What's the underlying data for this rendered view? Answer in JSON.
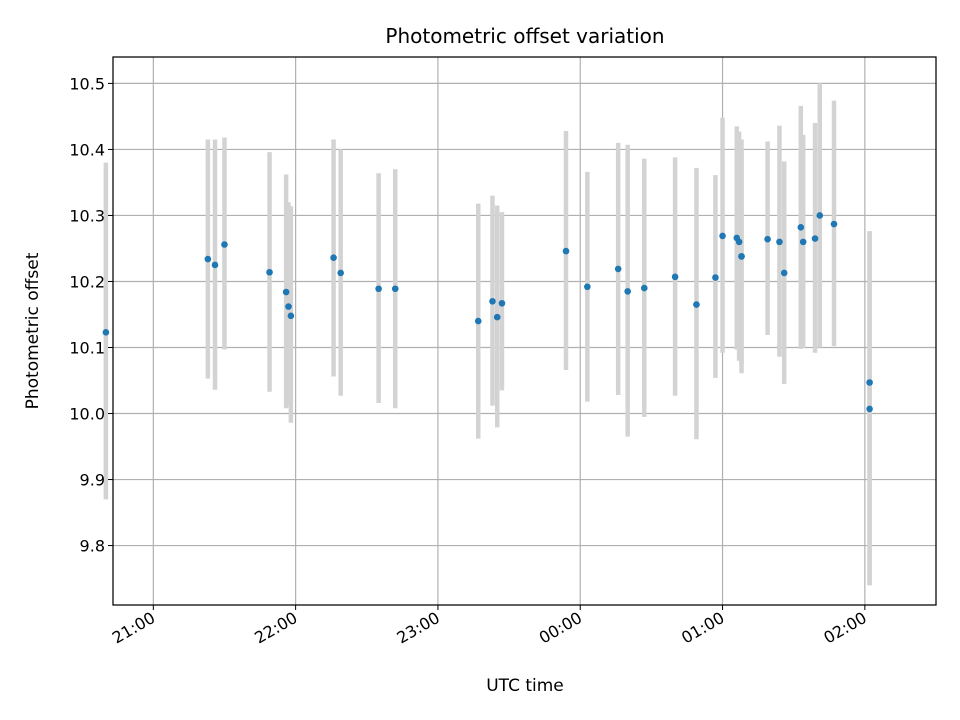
{
  "chart_data": {
    "type": "scatter",
    "title": "Photometric offset variation",
    "xlabel": "UTC time",
    "ylabel": "Photometric offset",
    "grid": true,
    "legend": "none",
    "xlim": [
      "20:43",
      "02:30"
    ],
    "ylim": [
      9.71,
      10.54
    ],
    "x_ticks": [
      "21:00",
      "22:00",
      "23:00",
      "00:00",
      "01:00",
      "02:00"
    ],
    "y_ticks": [
      "9.8",
      "9.9",
      "10.0",
      "10.1",
      "10.2",
      "10.3",
      "10.4",
      "10.5"
    ],
    "colors": {
      "point": "#1f77b4",
      "errorbar": "#d3d3d3"
    },
    "points": [
      {
        "t": "20:40",
        "y": 10.123,
        "lo": 9.87,
        "hi": 10.38
      },
      {
        "t": "21:23",
        "y": 10.234,
        "lo": 10.053,
        "hi": 10.415
      },
      {
        "t": "21:26",
        "y": 10.225,
        "lo": 10.036,
        "hi": 10.415
      },
      {
        "t": "21:30",
        "y": 10.256,
        "lo": 10.097,
        "hi": 10.418
      },
      {
        "t": "21:49",
        "y": 10.214,
        "lo": 10.033,
        "hi": 10.396
      },
      {
        "t": "21:56",
        "y": 10.184,
        "lo": 10.008,
        "hi": 10.362
      },
      {
        "t": "21:57",
        "y": 10.162,
        "lo": 10.012,
        "hi": 10.32
      },
      {
        "t": "21:58",
        "y": 10.148,
        "lo": 9.986,
        "hi": 10.314
      },
      {
        "t": "22:16",
        "y": 10.236,
        "lo": 10.056,
        "hi": 10.415
      },
      {
        "t": "22:19",
        "y": 10.213,
        "lo": 10.027,
        "hi": 10.4
      },
      {
        "t": "22:35",
        "y": 10.189,
        "lo": 10.016,
        "hi": 10.364
      },
      {
        "t": "22:42",
        "y": 10.189,
        "lo": 10.008,
        "hi": 10.37
      },
      {
        "t": "23:17",
        "y": 10.14,
        "lo": 9.962,
        "hi": 10.318
      },
      {
        "t": "23:23",
        "y": 10.17,
        "lo": 10.012,
        "hi": 10.33
      },
      {
        "t": "23:25",
        "y": 10.146,
        "lo": 9.979,
        "hi": 10.315
      },
      {
        "t": "23:27",
        "y": 10.167,
        "lo": 10.035,
        "hi": 10.305
      },
      {
        "t": "23:54",
        "y": 10.246,
        "lo": 10.066,
        "hi": 10.428
      },
      {
        "t": "00:03",
        "y": 10.192,
        "lo": 10.018,
        "hi": 10.366
      },
      {
        "t": "00:16",
        "y": 10.219,
        "lo": 10.028,
        "hi": 10.41
      },
      {
        "t": "00:20",
        "y": 10.185,
        "lo": 9.965,
        "hi": 10.407
      },
      {
        "t": "00:27",
        "y": 10.19,
        "lo": 9.995,
        "hi": 10.386
      },
      {
        "t": "00:40",
        "y": 10.207,
        "lo": 10.027,
        "hi": 10.388
      },
      {
        "t": "00:49",
        "y": 10.165,
        "lo": 9.961,
        "hi": 10.372
      },
      {
        "t": "00:57",
        "y": 10.206,
        "lo": 10.054,
        "hi": 10.361
      },
      {
        "t": "01:00",
        "y": 10.269,
        "lo": 10.092,
        "hi": 10.448
      },
      {
        "t": "01:06",
        "y": 10.266,
        "lo": 10.097,
        "hi": 10.435
      },
      {
        "t": "01:07",
        "y": 10.26,
        "lo": 10.08,
        "hi": 10.427
      },
      {
        "t": "01:08",
        "y": 10.238,
        "lo": 10.061,
        "hi": 10.415
      },
      {
        "t": "01:08",
        "y": 10.238,
        "lo": 10.075,
        "hi": 10.397
      },
      {
        "t": "01:19",
        "y": 10.264,
        "lo": 10.119,
        "hi": 10.412
      },
      {
        "t": "01:24",
        "y": 10.26,
        "lo": 10.086,
        "hi": 10.436
      },
      {
        "t": "01:26",
        "y": 10.213,
        "lo": 10.045,
        "hi": 10.382
      },
      {
        "t": "01:33",
        "y": 10.282,
        "lo": 10.098,
        "hi": 10.466
      },
      {
        "t": "01:34",
        "y": 10.26,
        "lo": 10.099,
        "hi": 10.422
      },
      {
        "t": "01:39",
        "y": 10.265,
        "lo": 10.092,
        "hi": 10.44
      },
      {
        "t": "01:41",
        "y": 10.3,
        "lo": 10.1,
        "hi": 10.5
      },
      {
        "t": "01:47",
        "y": 10.287,
        "lo": 10.102,
        "hi": 10.474
      },
      {
        "t": "02:02",
        "y": 10.047,
        "lo": 9.74,
        "hi": 10.276
      },
      {
        "t": "02:02",
        "y": 10.007,
        "lo": 9.74,
        "hi": 10.276
      }
    ]
  }
}
